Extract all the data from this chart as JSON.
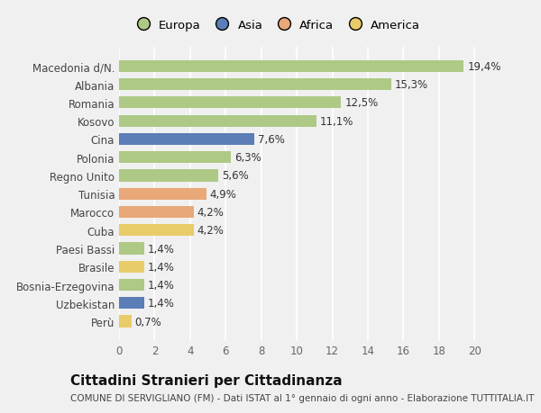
{
  "categories": [
    "Macedonia d/N.",
    "Albania",
    "Romania",
    "Kosovo",
    "Cina",
    "Polonia",
    "Regno Unito",
    "Tunisia",
    "Marocco",
    "Cuba",
    "Paesi Bassi",
    "Brasile",
    "Bosnia-Erzegovina",
    "Uzbekistan",
    "Perù"
  ],
  "values": [
    19.4,
    15.3,
    12.5,
    11.1,
    7.6,
    6.3,
    5.6,
    4.9,
    4.2,
    4.2,
    1.4,
    1.4,
    1.4,
    1.4,
    0.7
  ],
  "labels": [
    "19,4%",
    "15,3%",
    "12,5%",
    "11,1%",
    "7,6%",
    "6,3%",
    "5,6%",
    "4,9%",
    "4,2%",
    "4,2%",
    "1,4%",
    "1,4%",
    "1,4%",
    "1,4%",
    "0,7%"
  ],
  "colors": [
    "#aec985",
    "#aec985",
    "#aec985",
    "#aec985",
    "#5b7db8",
    "#aec985",
    "#aec985",
    "#e8a878",
    "#e8a878",
    "#e8cc6a",
    "#aec985",
    "#e8cc6a",
    "#aec985",
    "#5b7db8",
    "#e8cc6a"
  ],
  "continent_colors": {
    "Europa": "#aec985",
    "Asia": "#5b7db8",
    "Africa": "#e8a878",
    "America": "#e8cc6a"
  },
  "legend_labels": [
    "Europa",
    "Asia",
    "Africa",
    "America"
  ],
  "title": "Cittadini Stranieri per Cittadinanza",
  "subtitle": "COMUNE DI SERVIGLIANO (FM) - Dati ISTAT al 1° gennaio di ogni anno - Elaborazione TUTTITALIA.IT",
  "xlim": [
    0,
    21
  ],
  "xticks": [
    0,
    2,
    4,
    6,
    8,
    10,
    12,
    14,
    16,
    18,
    20
  ],
  "figure_bg": "#f0f0f0",
  "plot_bg": "#f0f0f0",
  "grid_color": "#ffffff",
  "bar_height": 0.65,
  "title_fontsize": 11,
  "subtitle_fontsize": 7.5,
  "label_fontsize": 8.5,
  "tick_fontsize": 8.5,
  "legend_fontsize": 9.5
}
